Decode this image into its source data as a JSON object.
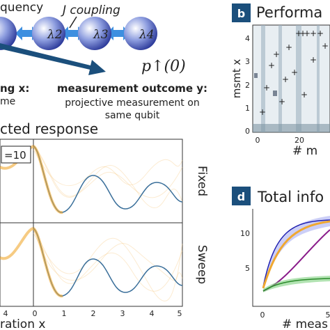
{
  "panel_a": {
    "frequency_label": "quency",
    "coupling_label": "J coupling",
    "nodes": [
      "λ2",
      "λ3",
      "λ4"
    ],
    "initial_state": "p↑(0)",
    "setting_title": "ng x:",
    "setting_text": "me",
    "outcome_title": "measurement outcome y:",
    "outcome_text": [
      "projective measurement on",
      "same qubit"
    ]
  },
  "panel_c": {
    "title": "cted response",
    "badge": "=10",
    "rows": [
      "Fixed",
      "Sweep"
    ],
    "xticks_left": [
      "4"
    ],
    "xticks": [
      "0",
      "1",
      "2",
      "3",
      "4",
      "5"
    ],
    "xlabel": "ration x"
  },
  "panel_b": {
    "badge": "b",
    "title": "Performa",
    "ylabel": "msmt x",
    "yticks": [
      "0",
      "1",
      "2",
      "3",
      "4"
    ],
    "xticks": [
      "0",
      "20"
    ],
    "xlabel": "# m"
  },
  "panel_d": {
    "badge": "d",
    "title": "Total info",
    "yticks": [
      "5",
      "10"
    ],
    "xticks": [
      "0",
      "5"
    ],
    "xlabel": "# meas"
  }
}
